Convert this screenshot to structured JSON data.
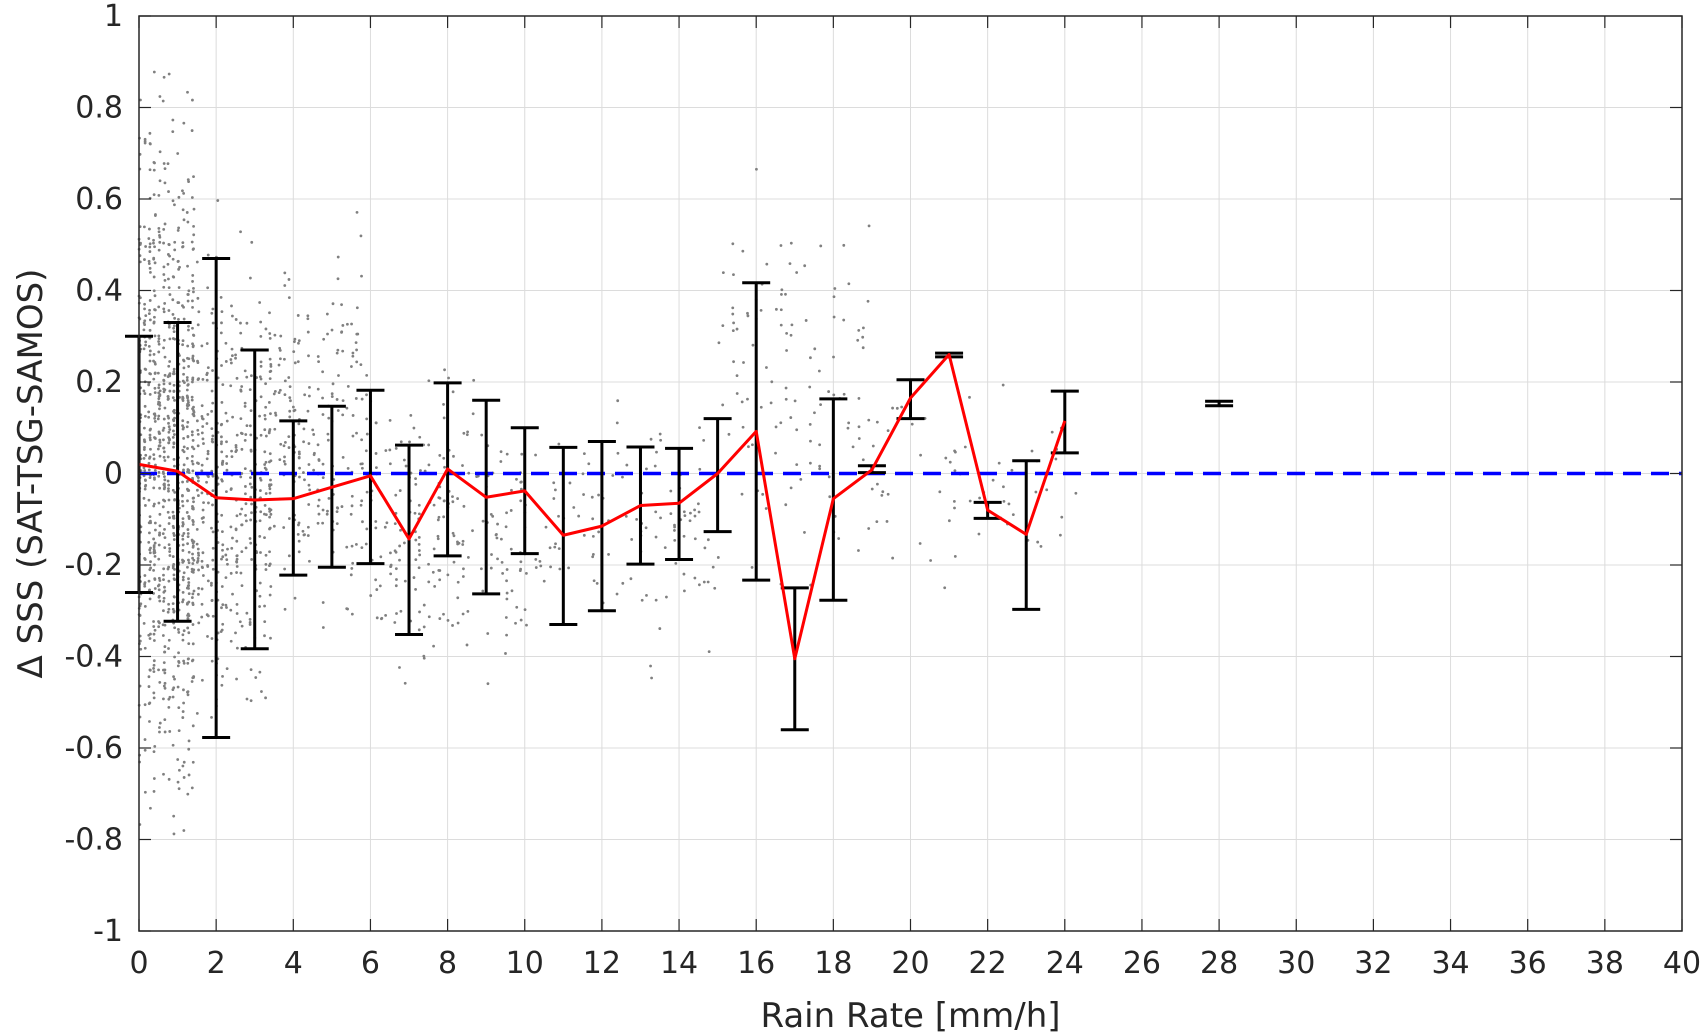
{
  "chart_data": {
    "type": "scatter",
    "title": "",
    "xlabel": "Rain Rate [mm/h]",
    "ylabel": "Δ SSS (SAT-TSG-SAMOS)",
    "xlim": [
      0,
      40
    ],
    "ylim": [
      -1,
      1
    ],
    "xticks": [
      0,
      2,
      4,
      6,
      8,
      10,
      12,
      14,
      16,
      18,
      20,
      22,
      24,
      26,
      28,
      30,
      32,
      34,
      36,
      38,
      40
    ],
    "yticks": [
      1,
      0.8,
      0.6,
      0.4,
      0.2,
      0,
      -0.2,
      -0.4,
      -0.6,
      -0.8,
      -1
    ],
    "ytick_labels": [
      "1",
      "0.8",
      "0.6",
      "0.4",
      "0.2",
      "0",
      "-0.2",
      "-0.4",
      "-0.6",
      "-0.8",
      "-1"
    ],
    "grid": true,
    "colors": {
      "scatter": "#808080",
      "mean_line": "#ff0000",
      "errorbars": "#000000",
      "zero_line": "#0000ff",
      "grid": "#dcdcdc",
      "axes": "#262626"
    },
    "series": [
      {
        "kind": "scatter",
        "note_points": "gray individual match-ups, dense near 0 mm/h, spread decreases with rain rate",
        "clusters": [
          {
            "x_range": [
              0,
              1.5
            ],
            "y_range": [
              -0.94,
              1.0
            ],
            "density": "very high"
          },
          {
            "x_range": [
              1.5,
              3.5
            ],
            "y_range": [
              -0.7,
              0.65
            ],
            "density": "high"
          },
          {
            "x_range": [
              3.5,
              6
            ],
            "y_range": [
              -0.45,
              0.6
            ],
            "density": "medium"
          },
          {
            "x_range": [
              6,
              10
            ],
            "y_range": [
              -0.55,
              0.3
            ],
            "density": "medium"
          },
          {
            "x_range": [
              10,
              15
            ],
            "y_range": [
              -0.5,
              0.25
            ],
            "density": "low"
          },
          {
            "x_range": [
              15,
              19
            ],
            "y_range": [
              -0.4,
              0.8
            ],
            "density": "low"
          },
          {
            "x_range": [
              19,
              24.5
            ],
            "y_range": [
              -0.3,
              0.28
            ],
            "density": "sparse"
          }
        ]
      },
      {
        "kind": "errorbar",
        "x": [
          0,
          1,
          2,
          3,
          4,
          5,
          6,
          7,
          8,
          9,
          10,
          11,
          12,
          13,
          14,
          15,
          16,
          17,
          18,
          19,
          20,
          21,
          22,
          23,
          24,
          28
        ],
        "upper": [
          0.3,
          0.33,
          0.47,
          0.27,
          0.115,
          0.147,
          0.182,
          0.062,
          0.198,
          0.16,
          0.1,
          0.057,
          0.07,
          0.058,
          0.055,
          0.12,
          0.417,
          -0.25,
          0.163,
          0.017,
          0.205,
          0.263,
          -0.063,
          0.028,
          0.18,
          0.158
        ],
        "lower": [
          -0.26,
          -0.323,
          -0.577,
          -0.383,
          -0.222,
          -0.205,
          -0.197,
          -0.352,
          -0.18,
          -0.263,
          -0.175,
          -0.33,
          -0.3,
          -0.198,
          -0.188,
          -0.127,
          -0.233,
          -0.56,
          -0.277,
          0.002,
          0.12,
          0.255,
          -0.098,
          -0.297,
          0.045,
          0.148
        ]
      },
      {
        "kind": "line",
        "x": [
          0,
          1,
          2,
          3,
          4,
          5,
          6,
          7,
          8,
          9,
          10,
          11,
          12,
          13,
          14,
          15,
          16,
          17,
          18,
          19,
          20,
          21,
          22,
          23,
          24
        ],
        "y": [
          0.02,
          0.005,
          -0.053,
          -0.058,
          -0.055,
          -0.03,
          -0.005,
          -0.143,
          0.01,
          -0.052,
          -0.038,
          -0.135,
          -0.115,
          -0.07,
          -0.065,
          0.0,
          0.092,
          -0.405,
          -0.055,
          0.008,
          0.165,
          0.26,
          -0.08,
          -0.133,
          0.115
        ]
      },
      {
        "kind": "hline",
        "y": 0,
        "style": "dashed"
      }
    ]
  }
}
